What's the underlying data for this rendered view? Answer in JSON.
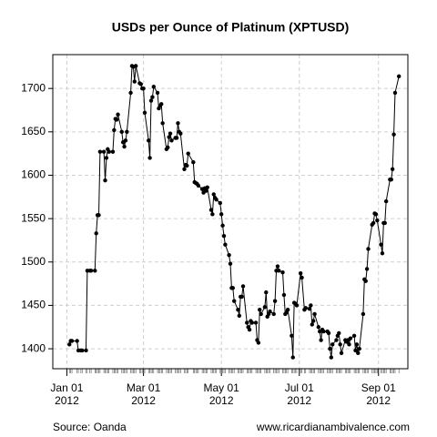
{
  "chart_data": {
    "type": "line",
    "title": "USDs per Ounce of Platinum (XPTUSD)",
    "source": "Source: Oanda",
    "credit": "www.ricardianambivalence.com",
    "color": "#000000",
    "grid": true,
    "x": [
      "2012-01-03",
      "2012-01-04",
      "2012-01-05",
      "2012-01-09",
      "2012-01-10",
      "2012-01-12",
      "2012-01-13",
      "2012-01-16",
      "2012-01-17",
      "2012-01-19",
      "2012-01-20",
      "2012-01-23",
      "2012-01-24",
      "2012-01-25",
      "2012-01-26",
      "2012-01-27",
      "2012-01-30",
      "2012-01-31",
      "2012-02-01",
      "2012-02-02",
      "2012-02-03",
      "2012-02-06",
      "2012-02-07",
      "2012-02-08",
      "2012-02-09",
      "2012-02-10",
      "2012-02-13",
      "2012-02-14",
      "2012-02-15",
      "2012-02-16",
      "2012-02-17",
      "2012-02-20",
      "2012-02-21",
      "2012-02-22",
      "2012-02-23",
      "2012-02-24",
      "2012-02-27",
      "2012-02-28",
      "2012-02-29",
      "2012-03-01",
      "2012-03-02",
      "2012-03-05",
      "2012-03-06",
      "2012-03-07",
      "2012-03-08",
      "2012-03-09",
      "2012-03-12",
      "2012-03-13",
      "2012-03-14",
      "2012-03-15",
      "2012-03-16",
      "2012-03-19",
      "2012-03-20",
      "2012-03-21",
      "2012-03-22",
      "2012-03-23",
      "2012-03-26",
      "2012-03-27",
      "2012-03-28",
      "2012-03-29",
      "2012-03-30",
      "2012-04-02",
      "2012-04-03",
      "2012-04-04",
      "2012-04-05",
      "2012-04-09",
      "2012-04-10",
      "2012-04-11",
      "2012-04-12",
      "2012-04-13",
      "2012-04-16",
      "2012-04-17",
      "2012-04-18",
      "2012-04-19",
      "2012-04-20",
      "2012-04-23",
      "2012-04-24",
      "2012-04-25",
      "2012-04-26",
      "2012-04-27",
      "2012-04-30",
      "2012-05-01",
      "2012-05-02",
      "2012-05-03",
      "2012-05-04",
      "2012-05-07",
      "2012-05-08",
      "2012-05-09",
      "2012-05-10",
      "2012-05-11",
      "2012-05-14",
      "2012-05-15",
      "2012-05-16",
      "2012-05-17",
      "2012-05-18",
      "2012-05-21",
      "2012-05-22",
      "2012-05-23",
      "2012-05-24",
      "2012-05-25",
      "2012-05-28",
      "2012-05-29",
      "2012-05-30",
      "2012-05-31",
      "2012-06-01",
      "2012-06-04",
      "2012-06-05",
      "2012-06-06",
      "2012-06-07",
      "2012-06-08",
      "2012-06-11",
      "2012-06-12",
      "2012-06-13",
      "2012-06-14",
      "2012-06-15",
      "2012-06-18",
      "2012-06-19",
      "2012-06-20",
      "2012-06-21",
      "2012-06-22",
      "2012-06-25",
      "2012-06-26",
      "2012-06-27",
      "2012-06-28",
      "2012-06-29",
      "2012-07-02",
      "2012-07-03",
      "2012-07-05",
      "2012-07-06",
      "2012-07-09",
      "2012-07-10",
      "2012-07-11",
      "2012-07-12",
      "2012-07-13",
      "2012-07-16",
      "2012-07-17",
      "2012-07-18",
      "2012-07-19",
      "2012-07-20",
      "2012-07-23",
      "2012-07-24",
      "2012-07-25",
      "2012-07-26",
      "2012-07-27",
      "2012-07-30",
      "2012-07-31",
      "2012-08-01",
      "2012-08-02",
      "2012-08-03",
      "2012-08-06",
      "2012-08-07",
      "2012-08-08",
      "2012-08-09",
      "2012-08-10",
      "2012-08-13",
      "2012-08-14",
      "2012-08-15",
      "2012-08-16",
      "2012-08-17",
      "2012-08-20",
      "2012-08-21",
      "2012-08-22",
      "2012-08-23",
      "2012-08-24",
      "2012-08-27",
      "2012-08-28",
      "2012-08-29",
      "2012-08-30",
      "2012-08-31",
      "2012-09-03",
      "2012-09-04",
      "2012-09-05",
      "2012-09-06",
      "2012-09-07",
      "2012-09-10",
      "2012-09-11",
      "2012-09-12",
      "2012-09-13",
      "2012-09-14",
      "2012-09-17"
    ],
    "values": [
      1405,
      1409,
      1409,
      1409,
      1398,
      1398,
      1398,
      1398,
      1490,
      1490,
      1490,
      1490,
      1533,
      1554,
      1554,
      1627,
      1627,
      1594,
      1620,
      1630,
      1627,
      1627,
      1652,
      1665,
      1664,
      1670,
      1650,
      1638,
      1633,
      1640,
      1650,
      1695,
      1726,
      1725,
      1708,
      1726,
      1706,
      1705,
      1700,
      1700,
      1672,
      1640,
      1620,
      1686,
      1690,
      1702,
      1695,
      1677,
      1680,
      1682,
      1660,
      1630,
      1632,
      1644,
      1648,
      1640,
      1643,
      1643,
      1660,
      1650,
      1648,
      1607,
      1612,
      1611,
      1625,
      1615,
      1592,
      1591,
      1590,
      1588,
      1584,
      1580,
      1585,
      1582,
      1586,
      1560,
      1555,
      1578,
      1574,
      1572,
      1568,
      1555,
      1542,
      1530,
      1520,
      1508,
      1498,
      1470,
      1470,
      1455,
      1445,
      1438,
      1460,
      1460,
      1472,
      1430,
      1425,
      1422,
      1432,
      1430,
      1430,
      1410,
      1407,
      1445,
      1440,
      1448,
      1465,
      1437,
      1440,
      1443,
      1440,
      1455,
      1490,
      1495,
      1490,
      1488,
      1462,
      1440,
      1442,
      1445,
      1415,
      1390,
      1453,
      1452,
      1450,
      1487,
      1482,
      1445,
      1447,
      1446,
      1450,
      1428,
      1432,
      1440,
      1425,
      1420,
      1410,
      1422,
      1420,
      1420,
      1418,
      1400,
      1390,
      1405,
      1410,
      1415,
      1418,
      1405,
      1395,
      1410,
      1408,
      1410,
      1405,
      1412,
      1415,
      1398,
      1405,
      1395,
      1400,
      1440,
      1480,
      1478,
      1492,
      1515,
      1543,
      1545,
      1556,
      1555,
      1548,
      1520,
      1510,
      1545,
      1545,
      1570,
      1595,
      1595,
      1607,
      1647,
      1695,
      1714
    ],
    "xlim": [
      "2011-12-21",
      "2012-09-24"
    ],
    "xticks": [
      {
        "value": "2012-01-01",
        "label": [
          "Jan 01",
          "2012"
        ]
      },
      {
        "value": "2012-03-01",
        "label": [
          "Mar 01",
          "2012"
        ]
      },
      {
        "value": "2012-05-01",
        "label": [
          "May 01",
          "2012"
        ]
      },
      {
        "value": "2012-07-01",
        "label": [
          "Jul 01",
          "2012"
        ]
      },
      {
        "value": "2012-09-01",
        "label": [
          "Sep 01",
          "2012"
        ]
      }
    ],
    "ylim": [
      1377,
      1739
    ],
    "yticks": [
      1400,
      1450,
      1500,
      1550,
      1600,
      1650,
      1700
    ]
  }
}
